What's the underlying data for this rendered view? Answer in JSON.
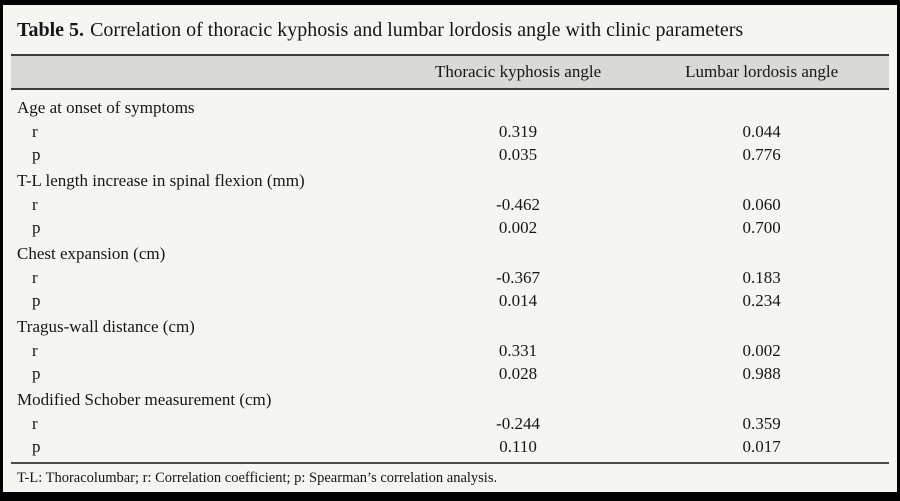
{
  "title": {
    "number": "Table 5.",
    "caption": "Correlation of thoracic kyphosis and lumbar lordosis angle with clinic parameters"
  },
  "columns": {
    "col2": "Thoracic kyphosis angle",
    "col3": "Lumbar lordosis angle"
  },
  "row_labels": {
    "r": "r",
    "p": "p"
  },
  "sections": [
    {
      "label": "Age at onset of symptoms",
      "r": [
        "0.319",
        "0.044"
      ],
      "p": [
        "0.035",
        "0.776"
      ]
    },
    {
      "label": "T-L length increase in spinal flexion (mm)",
      "r": [
        "-0.462",
        "0.060"
      ],
      "p": [
        "0.002",
        "0.700"
      ]
    },
    {
      "label": "Chest expansion (cm)",
      "r": [
        "-0.367",
        "0.183"
      ],
      "p": [
        "0.014",
        "0.234"
      ]
    },
    {
      "label": "Tragus-wall distance (cm)",
      "r": [
        "0.331",
        "0.002"
      ],
      "p": [
        "0.028",
        "0.988"
      ]
    },
    {
      "label": "Modified Schober measurement (cm)",
      "r": [
        "-0.244",
        "0.359"
      ],
      "p": [
        "0.110",
        "0.017"
      ]
    }
  ],
  "footnote": "T-L: Thoracolumbar; r: Correlation coefficient; p: Spearman’s correlation analysis.",
  "colors": {
    "frame_border": "#000000",
    "background": "#f5f5f2",
    "header_band": "#d9d9d6",
    "rule_dark": "#3c3c3c",
    "text": "#161616"
  }
}
